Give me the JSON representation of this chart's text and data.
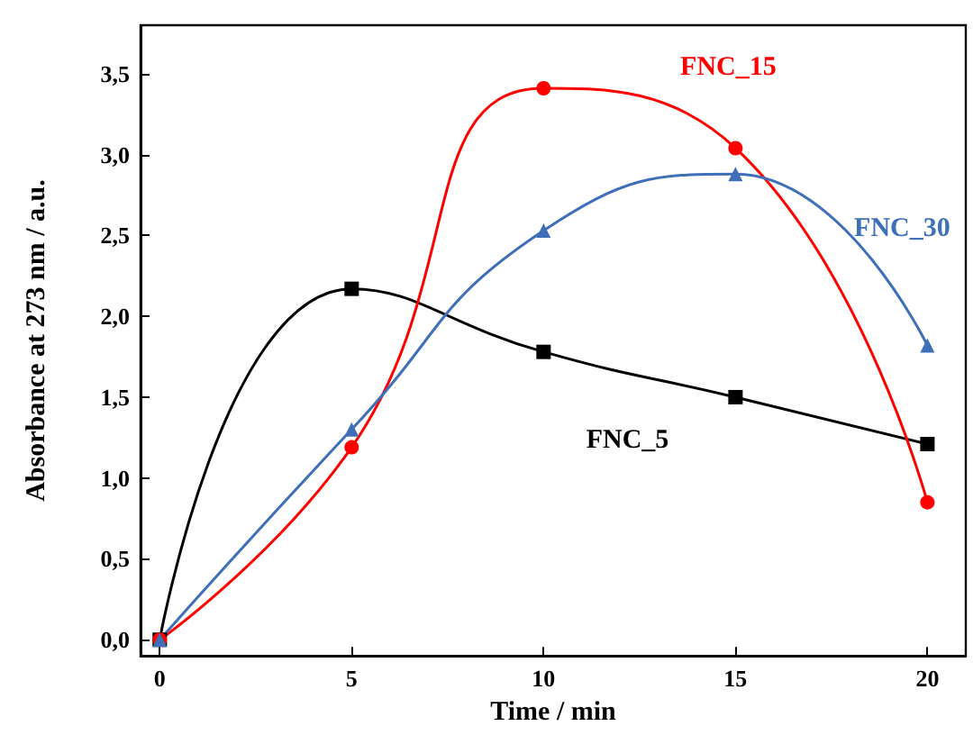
{
  "chart_data": {
    "type": "line",
    "xlabel": "Time / min",
    "ylabel": "Absorbance at 273 nm / a.u.",
    "x": [
      0,
      5,
      10,
      15,
      20
    ],
    "series": [
      {
        "name": "FNC_5",
        "color": "#000000",
        "marker": "square",
        "values": [
          0,
          2.17,
          1.78,
          1.5,
          1.21
        ]
      },
      {
        "name": "FNC_15",
        "color": "#ff0000",
        "marker": "circle",
        "values": [
          0,
          1.19,
          3.41,
          3.04,
          0.85
        ]
      },
      {
        "name": "FNC_30",
        "color": "#3f6fb8",
        "marker": "triangle",
        "values": [
          0,
          1.3,
          2.53,
          2.88,
          1.82
        ]
      }
    ],
    "xlim": [
      -0.5,
      21
    ],
    "xticks": [
      0,
      5,
      10,
      15,
      20
    ],
    "ylim": [
      -0.1,
      3.8
    ],
    "yticks": [
      {
        "value": 0,
        "label": "0,0"
      },
      {
        "value": 0.5,
        "label": "0,5"
      },
      {
        "value": 1,
        "label": "1,0"
      },
      {
        "value": 1.5,
        "label": "1,5"
      },
      {
        "value": 2,
        "label": "2,0"
      },
      {
        "value": 2.5,
        "label": "2,5"
      },
      {
        "value": 3,
        "label": "3,0"
      },
      {
        "value": 3.5,
        "label": "3,5"
      }
    ],
    "grid": false,
    "legend": false,
    "line_style": "solid"
  }
}
